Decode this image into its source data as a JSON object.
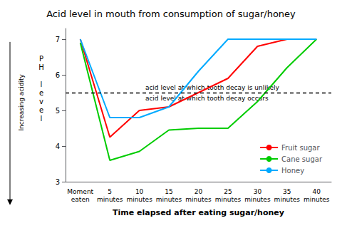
{
  "chart_data": {
    "type": "line",
    "title": "Acid level in mouth from consumption of sugar/honey",
    "xlabel": "Time elapsed after eating sugar/honey",
    "ylabel": "PH level",
    "y_note": "Increasing acidity",
    "categories": [
      "Moment\neaten",
      "5\nminutes",
      "10\nminutes",
      "15\nminutes",
      "20\nminutes",
      "25\nminutes",
      "30\nminutes",
      "35\nminutes",
      "40\nminutes"
    ],
    "series": [
      {
        "name": "Fruit sugar",
        "color": "#ff0000",
        "values": [
          7.0,
          4.25,
          5.0,
          5.1,
          5.5,
          5.9,
          6.8,
          7.0,
          7.0
        ]
      },
      {
        "name": "Cane sugar",
        "color": "#00cc00",
        "values": [
          6.9,
          3.6,
          3.85,
          4.45,
          4.5,
          4.5,
          5.25,
          6.2,
          7.0
        ]
      },
      {
        "name": "Honey",
        "color": "#00aaff",
        "values": [
          7.0,
          4.8,
          4.8,
          5.1,
          6.1,
          7.0,
          7.0,
          7.0,
          7.0
        ]
      }
    ],
    "hline": {
      "y": 5.5,
      "label_above": "acid level at which tooth decay is unlikely",
      "label_below": "acid level at which tooth decay occurs"
    },
    "ylim": [
      3,
      7.3
    ],
    "yticks": [
      3,
      4,
      5,
      6,
      7
    ],
    "grid": false,
    "legend": "lower right"
  }
}
